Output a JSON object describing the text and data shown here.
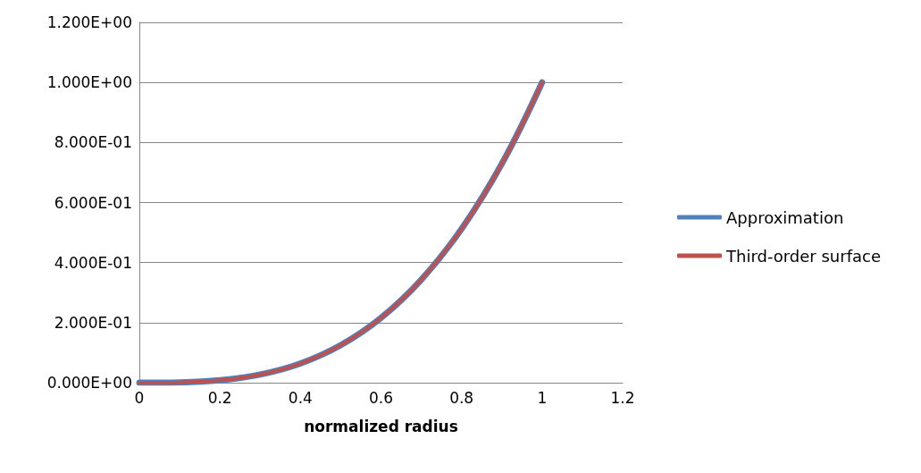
{
  "chart_data": {
    "type": "line",
    "xlabel": "normalized radius",
    "x": [
      0,
      0.1,
      0.2,
      0.3,
      0.4,
      0.5,
      0.6,
      0.7,
      0.8,
      0.9,
      1.0
    ],
    "series": [
      {
        "name": "Approximation",
        "color": "#4f81bd",
        "values": [
          0,
          0.001,
          0.008,
          0.027,
          0.064,
          0.125,
          0.216,
          0.343,
          0.512,
          0.729,
          1.0
        ]
      },
      {
        "name": "Third-order surface",
        "color": "#c0504d",
        "values": [
          0,
          0.001,
          0.008,
          0.027,
          0.064,
          0.125,
          0.216,
          0.343,
          0.512,
          0.729,
          1.0
        ]
      }
    ],
    "xlim": [
      0,
      1.2
    ],
    "xticks": [
      0,
      0.2,
      0.4,
      0.6,
      0.8,
      1,
      1.2
    ],
    "ylim": [
      0,
      1.2
    ],
    "yticks": [
      {
        "value": 0,
        "label": "0.000E+00"
      },
      {
        "value": 0.2,
        "label": "2.000E-01"
      },
      {
        "value": 0.4,
        "label": "4.000E-01"
      },
      {
        "value": 0.6,
        "label": "6.000E-01"
      },
      {
        "value": 0.8,
        "label": "8.000E-01"
      },
      {
        "value": 1.0,
        "label": "1.000E+00"
      },
      {
        "value": 1.2,
        "label": "1.200E+00"
      }
    ],
    "grid": "y",
    "legend": "right",
    "marker": "none",
    "line_style": "solid"
  }
}
